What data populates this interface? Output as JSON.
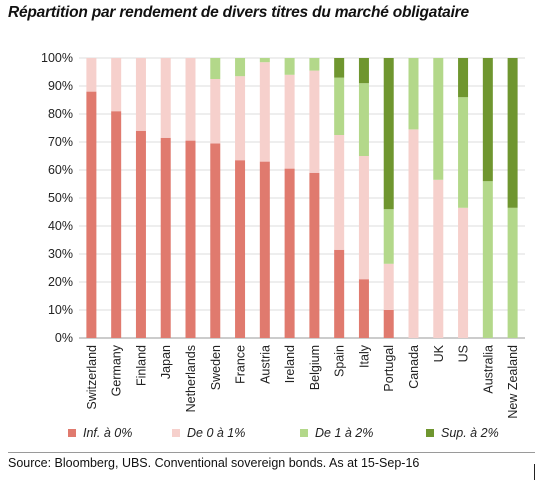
{
  "chart_data": {
    "type": "bar",
    "stacked": true,
    "title": "Répartition par rendement de divers titres du marché obligataire",
    "xlabel": "",
    "ylabel": "",
    "ylim": [
      0,
      100
    ],
    "yticks": [
      0,
      10,
      20,
      30,
      40,
      50,
      60,
      70,
      80,
      90,
      100
    ],
    "ytick_labels": [
      "0%",
      "10%",
      "20%",
      "30%",
      "40%",
      "50%",
      "60%",
      "70%",
      "80%",
      "90%",
      "100%"
    ],
    "grid": true,
    "legend_position": "bottom",
    "categories": [
      "Switzerland",
      "Germany",
      "Finland",
      "Japan",
      "Netherlands",
      "Sweden",
      "France",
      "Austria",
      "Ireland",
      "Belgium",
      "Spain",
      "Italy",
      "Portugal",
      "Canada",
      "UK",
      "US",
      "Australia",
      "New Zealand"
    ],
    "series": [
      {
        "name": "Inf. à 0%",
        "color": "#e07a6e",
        "values": [
          88,
          81,
          74,
          71.5,
          70.5,
          69.5,
          63.5,
          63,
          60.5,
          59,
          31.5,
          21,
          10,
          0,
          0,
          0,
          0,
          0
        ]
      },
      {
        "name": "De 0 à 1%",
        "color": "#f6d0cc",
        "values": [
          12,
          19,
          26,
          28.5,
          29.5,
          23,
          30,
          35.5,
          33.5,
          36.5,
          41,
          44,
          16.5,
          74.5,
          56.5,
          46.5,
          0,
          0
        ]
      },
      {
        "name": "De 1 à 2%",
        "color": "#b3d88a",
        "values": [
          0,
          0,
          0,
          0,
          0,
          7.5,
          6.5,
          1.5,
          6,
          4.5,
          20.5,
          26,
          19.5,
          25.5,
          43.5,
          39.5,
          56,
          46.5
        ]
      },
      {
        "name": "Sup. à 2%",
        "color": "#6f962f",
        "values": [
          0,
          0,
          0,
          0,
          0,
          0,
          0,
          0,
          0,
          0,
          7,
          9,
          54,
          0,
          0,
          14,
          44,
          53.5
        ]
      }
    ]
  },
  "source": "Source:  Bloomberg, UBS. Conventional sovereign bonds. As at 15-Sep-16"
}
